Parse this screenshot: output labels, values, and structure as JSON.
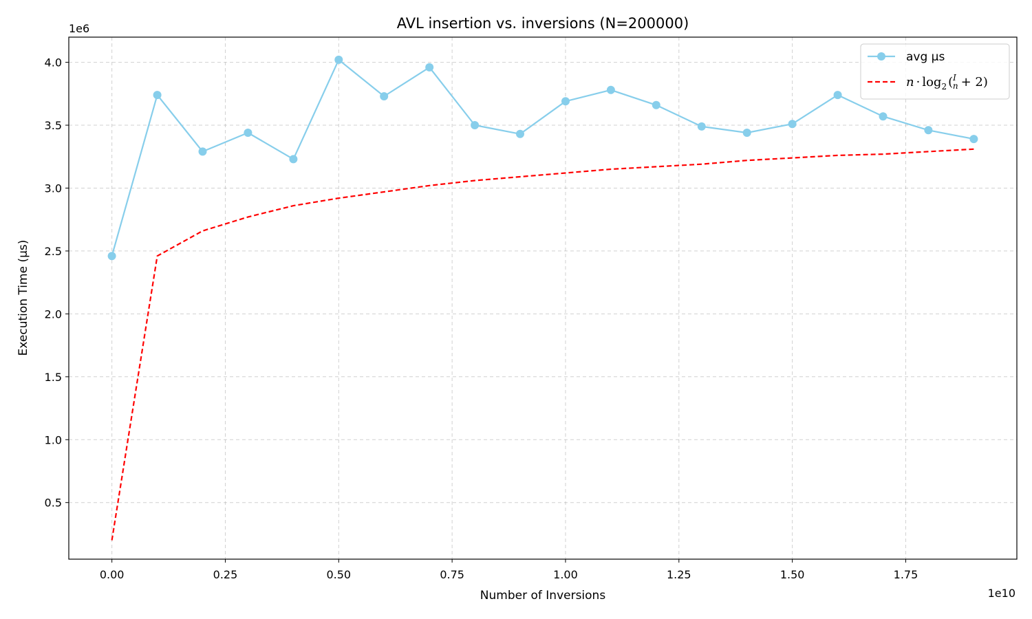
{
  "chart_data": {
    "type": "line",
    "title": "AVL insertion vs. inversions (N=200000)",
    "xlabel": "Number of Inversions",
    "ylabel": "Execution Time (µs)",
    "x_offset_label": "1e10",
    "y_offset_label": "1e6",
    "xlim": [
      -0.095,
      1.995
    ],
    "ylim": [
      0.05,
      4.2
    ],
    "x_ticks": [
      0.0,
      0.25,
      0.5,
      0.75,
      1.0,
      1.25,
      1.5,
      1.75
    ],
    "x_tick_labels": [
      "0.00",
      "0.25",
      "0.50",
      "0.75",
      "1.00",
      "1.25",
      "1.50",
      "1.75"
    ],
    "y_ticks": [
      0.5,
      1.0,
      1.5,
      2.0,
      2.5,
      3.0,
      3.5,
      4.0
    ],
    "y_tick_labels": [
      "0.5",
      "1.0",
      "1.5",
      "2.0",
      "2.5",
      "3.0",
      "3.5",
      "4.0"
    ],
    "grid": true,
    "legend_position": "top-right",
    "x": [
      0.0,
      0.1,
      0.2,
      0.3,
      0.4,
      0.5,
      0.6,
      0.7,
      0.8,
      0.9,
      1.0,
      1.1,
      1.2,
      1.3,
      1.4,
      1.5,
      1.6,
      1.7,
      1.8,
      1.9
    ],
    "series": [
      {
        "name": "avg µs",
        "style": "solid-marker",
        "color": "#87ceeb",
        "values": [
          2.46,
          3.74,
          3.29,
          3.44,
          3.23,
          4.02,
          3.73,
          3.96,
          3.5,
          3.43,
          3.69,
          3.78,
          3.66,
          3.49,
          3.44,
          3.51,
          3.74,
          3.57,
          3.46,
          3.39
        ]
      },
      {
        "name": "n·log2(I/n + 2)",
        "style": "dashed",
        "color": "#ff0000",
        "values": [
          0.2,
          2.46,
          2.66,
          2.77,
          2.86,
          2.92,
          2.97,
          3.02,
          3.06,
          3.09,
          3.12,
          3.15,
          3.17,
          3.19,
          3.22,
          3.24,
          3.26,
          3.27,
          3.29,
          3.31
        ]
      }
    ]
  }
}
